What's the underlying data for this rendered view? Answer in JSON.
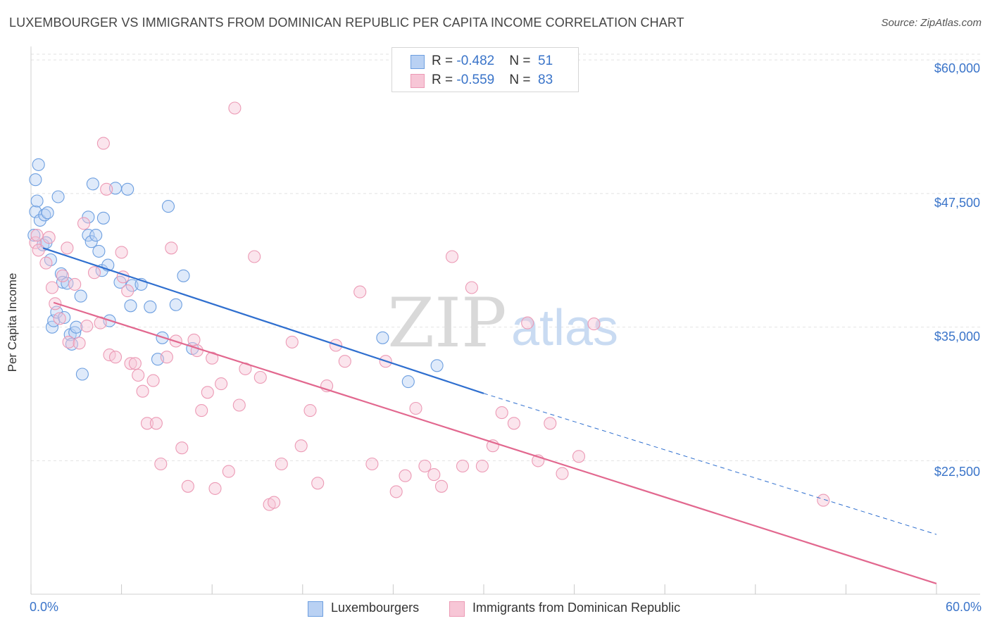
{
  "chart_data": {
    "type": "scatter",
    "title": "LUXEMBOURGER VS IMMIGRANTS FROM DOMINICAN REPUBLIC PER CAPITA INCOME CORRELATION CHART",
    "source": "Source: ZipAtlas.com",
    "xlabel": "",
    "ylabel": "Per Capita Income",
    "xlim": [
      0,
      60
    ],
    "ylim": [
      10800,
      61000
    ],
    "x_tick_labels": {
      "min": "0.0%",
      "max": "60.0%"
    },
    "y_ticks": [
      {
        "value": 60000,
        "label": "$60,000"
      },
      {
        "value": 47500,
        "label": "$47,500"
      },
      {
        "value": 35000,
        "label": "$35,000"
      },
      {
        "value": 22500,
        "label": "$22,500"
      }
    ],
    "watermark": {
      "zip": "ZIP",
      "atlas": "atlas"
    },
    "legend": {
      "rows": [
        {
          "r_label": "R = ",
          "r_value": "-0.482",
          "n_label": "N = ",
          "n_value": "51"
        },
        {
          "r_label": "R = ",
          "r_value": "-0.559",
          "n_label": "N = ",
          "n_value": "83"
        }
      ]
    },
    "series": [
      {
        "name": "Luxembourgers",
        "color": "#6d9fe0",
        "fill": "#b9d1f3",
        "line_color": "#2f6fcf",
        "trend": {
          "x0": 0.8,
          "y0": 42400,
          "x1": 30,
          "y1": 28800,
          "dash_x_end": 60,
          "dash_y_end": 15600
        },
        "points": [
          [
            0.3,
            45800
          ],
          [
            0.3,
            48800
          ],
          [
            0.4,
            46800
          ],
          [
            0.5,
            50200
          ],
          [
            0.6,
            45000
          ],
          [
            0.8,
            42700
          ],
          [
            0.9,
            45500
          ],
          [
            1.0,
            42900
          ],
          [
            1.1,
            45700
          ],
          [
            1.3,
            41300
          ],
          [
            1.4,
            35000
          ],
          [
            1.5,
            35600
          ],
          [
            1.7,
            36400
          ],
          [
            1.8,
            47200
          ],
          [
            2.0,
            40000
          ],
          [
            2.1,
            39200
          ],
          [
            2.2,
            35900
          ],
          [
            2.4,
            39100
          ],
          [
            2.6,
            34300
          ],
          [
            2.7,
            33400
          ],
          [
            2.9,
            34500
          ],
          [
            3.0,
            35000
          ],
          [
            3.3,
            37900
          ],
          [
            3.4,
            30600
          ],
          [
            3.8,
            43600
          ],
          [
            3.8,
            45300
          ],
          [
            4.0,
            43000
          ],
          [
            4.1,
            48400
          ],
          [
            4.3,
            43600
          ],
          [
            4.5,
            42100
          ],
          [
            4.7,
            40300
          ],
          [
            4.8,
            45200
          ],
          [
            5.1,
            40800
          ],
          [
            5.2,
            35600
          ],
          [
            5.6,
            48000
          ],
          [
            5.9,
            39200
          ],
          [
            6.4,
            47900
          ],
          [
            6.6,
            37000
          ],
          [
            6.7,
            38900
          ],
          [
            7.3,
            39000
          ],
          [
            7.9,
            36900
          ],
          [
            8.4,
            32000
          ],
          [
            8.7,
            34000
          ],
          [
            9.1,
            46300
          ],
          [
            9.6,
            37100
          ],
          [
            10.1,
            39800
          ],
          [
            10.7,
            33000
          ],
          [
            23.3,
            34000
          ],
          [
            25.0,
            29900
          ],
          [
            26.9,
            31400
          ],
          [
            0.2,
            43600
          ]
        ]
      },
      {
        "name": "Immigrants from Dominican Republic",
        "color": "#ec9ab5",
        "fill": "#f7c6d6",
        "line_color": "#e2688f",
        "trend": {
          "x0": 1.5,
          "y0": 37300,
          "x1": 60,
          "y1": 11000
        },
        "points": [
          [
            0.3,
            42900
          ],
          [
            0.4,
            43600
          ],
          [
            0.5,
            42200
          ],
          [
            1.0,
            41000
          ],
          [
            1.2,
            43400
          ],
          [
            1.4,
            38700
          ],
          [
            1.6,
            37200
          ],
          [
            1.9,
            35800
          ],
          [
            2.1,
            39800
          ],
          [
            2.5,
            33600
          ],
          [
            2.9,
            39000
          ],
          [
            3.2,
            33500
          ],
          [
            3.5,
            44700
          ],
          [
            3.7,
            35100
          ],
          [
            4.2,
            40100
          ],
          [
            4.6,
            35400
          ],
          [
            4.8,
            52200
          ],
          [
            5.0,
            47900
          ],
          [
            5.2,
            32400
          ],
          [
            5.6,
            32200
          ],
          [
            6.0,
            42000
          ],
          [
            6.1,
            39700
          ],
          [
            6.4,
            38400
          ],
          [
            6.6,
            31600
          ],
          [
            6.9,
            31600
          ],
          [
            7.1,
            30500
          ],
          [
            7.4,
            29000
          ],
          [
            7.7,
            26000
          ],
          [
            8.1,
            30000
          ],
          [
            8.3,
            26000
          ],
          [
            8.6,
            22200
          ],
          [
            9.0,
            32200
          ],
          [
            9.3,
            42400
          ],
          [
            9.6,
            33700
          ],
          [
            10.0,
            23700
          ],
          [
            10.4,
            20100
          ],
          [
            10.8,
            33800
          ],
          [
            11.0,
            32800
          ],
          [
            11.3,
            27200
          ],
          [
            11.7,
            28900
          ],
          [
            12.0,
            32100
          ],
          [
            12.2,
            19900
          ],
          [
            12.6,
            29700
          ],
          [
            13.1,
            21500
          ],
          [
            13.5,
            55500
          ],
          [
            13.8,
            27700
          ],
          [
            14.2,
            31100
          ],
          [
            14.8,
            41600
          ],
          [
            15.2,
            30300
          ],
          [
            15.8,
            18400
          ],
          [
            16.1,
            18600
          ],
          [
            16.6,
            22200
          ],
          [
            17.3,
            33600
          ],
          [
            17.9,
            23900
          ],
          [
            18.5,
            27200
          ],
          [
            19.0,
            20400
          ],
          [
            19.6,
            29500
          ],
          [
            20.2,
            33300
          ],
          [
            20.8,
            31800
          ],
          [
            21.8,
            38300
          ],
          [
            22.6,
            22200
          ],
          [
            23.5,
            31800
          ],
          [
            24.2,
            19600
          ],
          [
            24.8,
            21100
          ],
          [
            25.5,
            27400
          ],
          [
            26.1,
            22000
          ],
          [
            26.7,
            21200
          ],
          [
            27.2,
            20100
          ],
          [
            27.9,
            41600
          ],
          [
            28.6,
            22000
          ],
          [
            29.2,
            38700
          ],
          [
            29.9,
            22000
          ],
          [
            30.6,
            23900
          ],
          [
            31.2,
            27000
          ],
          [
            32.0,
            26000
          ],
          [
            32.9,
            35400
          ],
          [
            33.6,
            22500
          ],
          [
            34.4,
            26000
          ],
          [
            35.2,
            21300
          ],
          [
            36.3,
            22900
          ],
          [
            37.3,
            35300
          ],
          [
            52.5,
            18800
          ],
          [
            2.4,
            42400
          ]
        ]
      }
    ]
  }
}
